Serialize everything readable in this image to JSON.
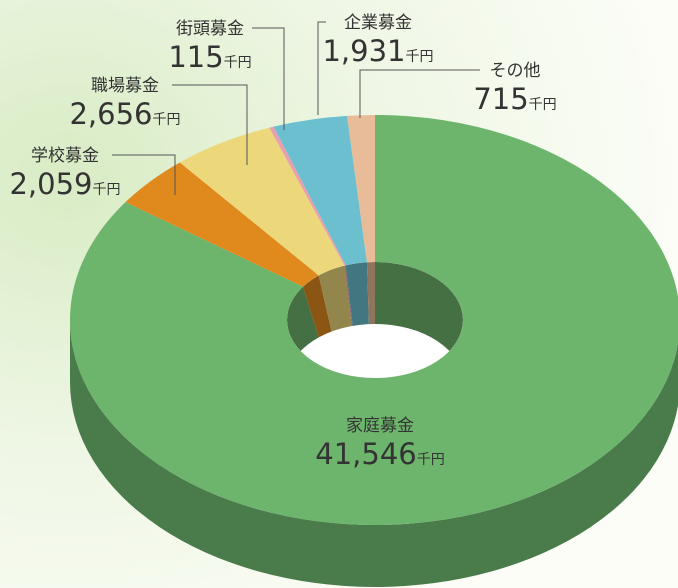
{
  "chart_data": {
    "type": "pie",
    "unit": "千円",
    "categories": [
      "家庭募金",
      "学校募金",
      "職場募金",
      "街頭募金",
      "企業募金",
      "その他"
    ],
    "values": [
      41546,
      2059,
      2656,
      115,
      1931,
      715
    ],
    "value_labels": [
      "41,546",
      "2,059",
      "2,656",
      "115",
      "1,931",
      "715"
    ],
    "colors": [
      "#6db56d",
      "#e08a1e",
      "#ecd87a",
      "#e8a0b0",
      "#6bbfcf",
      "#e8bc98"
    ]
  }
}
